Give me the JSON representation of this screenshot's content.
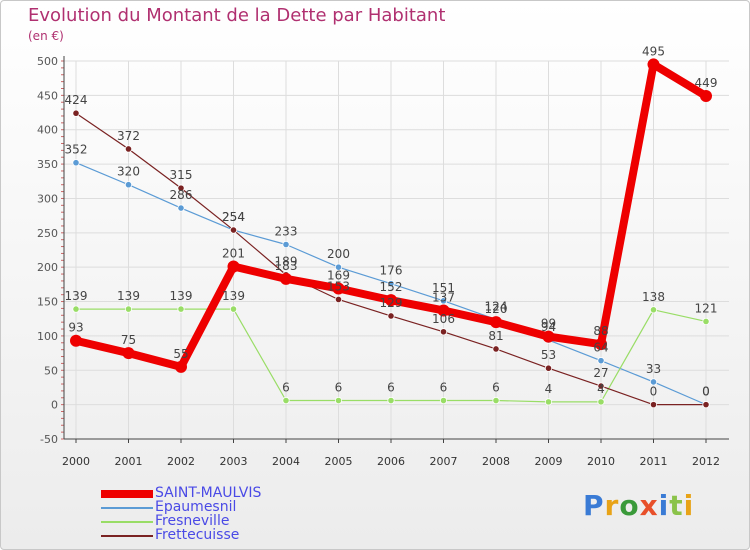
{
  "title": "Evolution du Montant de la Dette par Habitant",
  "unit_label": "(en €)",
  "logo": {
    "text": "Proxiti",
    "letter_colors": [
      "#3a7bd5",
      "#e8a317",
      "#3a9a3a",
      "#e8502a",
      "#3a7bd5",
      "#8bc34a",
      "#e8a317"
    ]
  },
  "colors": {
    "title": "#b03070",
    "legend_text": "#4a4ae6",
    "grid": "#dddddd",
    "axis": "#444444",
    "label": "#555555"
  },
  "chart_data": {
    "type": "line",
    "x": [
      "2000",
      "2001",
      "2002",
      "2003",
      "2004",
      "2005",
      "2006",
      "2007",
      "2008",
      "2009",
      "2010",
      "2011",
      "2012"
    ],
    "ylim": [
      -50,
      500
    ],
    "yticks": [
      "-50",
      "0",
      "50",
      "100",
      "150",
      "200",
      "250",
      "300",
      "350",
      "400",
      "450",
      "500"
    ],
    "grid": true,
    "legend_position": "bottom-left",
    "series": [
      {
        "name": "SAINT-MAULVIS",
        "color": "#ee0000",
        "values": [
          93,
          75,
          55,
          201,
          183,
          169,
          152,
          137,
          120,
          99,
          88,
          495,
          449
        ],
        "labels": [
          "93",
          "75",
          "55",
          "201",
          "183",
          "169",
          "152",
          "137",
          "120",
          "99",
          "88",
          "495",
          "449"
        ]
      },
      {
        "name": "Epaumesnil",
        "color": "#5b9bd5",
        "values": [
          352,
          320,
          286,
          254,
          233,
          200,
          176,
          151,
          124,
          94,
          64,
          33,
          0
        ],
        "labels": [
          "352",
          "320",
          "286",
          "254",
          "233",
          "200",
          "176",
          "151",
          "124",
          "94",
          "64",
          "33",
          "0"
        ]
      },
      {
        "name": "Fresneville",
        "color": "#99dd66",
        "values": [
          139,
          139,
          139,
          139,
          6,
          6,
          6,
          6,
          6,
          4,
          4,
          138,
          121
        ],
        "labels": [
          "139",
          "139",
          "139",
          "139",
          "6",
          "6",
          "6",
          "6",
          "6",
          "4",
          "4",
          "138",
          "121"
        ]
      },
      {
        "name": "Frettecuisse",
        "color": "#7a2222",
        "values": [
          424,
          372,
          315,
          254,
          189,
          153,
          129,
          106,
          81,
          53,
          27,
          0,
          0
        ],
        "labels": [
          "424",
          "372",
          "315",
          "254",
          "189",
          "153",
          "129",
          "106",
          "81",
          "53",
          "27",
          "0",
          "0"
        ]
      }
    ]
  }
}
